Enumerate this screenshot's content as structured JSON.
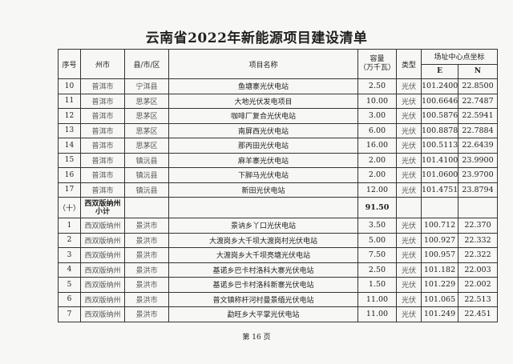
{
  "title": "云南省2022年新能源项目建设清单",
  "headers": {
    "seq": "序号",
    "prefecture": "州市",
    "county": "县/市/区",
    "project": "项目名称",
    "capacity": "容量\n（万千瓦）",
    "type": "类型",
    "coord": "场址中心点坐标",
    "e": "E",
    "n": "N"
  },
  "rows_a": [
    {
      "seq": "10",
      "pref": "普洱市",
      "county": "宁洱县",
      "name": "鱼塘寨光伏电站",
      "cap": "2.50",
      "type": "光伏",
      "e": "101.2400",
      "n": "22.8500"
    },
    {
      "seq": "11",
      "pref": "普洱市",
      "county": "思茅区",
      "name": "大地光伏发电项目",
      "cap": "10.00",
      "type": "光伏",
      "e": "100.6646",
      "n": "22.7487"
    },
    {
      "seq": "12",
      "pref": "普洱市",
      "county": "思茅区",
      "name": "咖啡厂复合光伏电站",
      "cap": "3.00",
      "type": "光伏",
      "e": "100.5876",
      "n": "22.5941"
    },
    {
      "seq": "13",
      "pref": "普洱市",
      "county": "思茅区",
      "name": "南屏西光伏电站",
      "cap": "6.00",
      "type": "光伏",
      "e": "100.8878",
      "n": "22.7884"
    },
    {
      "seq": "14",
      "pref": "普洱市",
      "county": "思茅区",
      "name": "那丙田光伏电站",
      "cap": "16.00",
      "type": "光伏",
      "e": "100.5113",
      "n": "22.6439"
    },
    {
      "seq": "15",
      "pref": "普洱市",
      "county": "镇沅县",
      "name": "麻羊寨光伏电站",
      "cap": "2.00",
      "type": "光伏",
      "e": "101.4100",
      "n": "23.9900"
    },
    {
      "seq": "16",
      "pref": "普洱市",
      "county": "镇沅县",
      "name": "下脚马光伏电站",
      "cap": "2.00",
      "type": "光伏",
      "e": "101.0600",
      "n": "23.9700"
    },
    {
      "seq": "17",
      "pref": "普洱市",
      "county": "镇沅县",
      "name": "新田光伏电站",
      "cap": "12.00",
      "type": "光伏",
      "e": "101.4751",
      "n": "23.8794"
    }
  ],
  "subtotal": {
    "seq": "（十）",
    "pref": "西双版纳州\n小计",
    "cap": "91.50"
  },
  "rows_b": [
    {
      "seq": "1",
      "pref": "西双版纳州",
      "county": "景洪市",
      "name": "景讷乡丫口光伏电站",
      "cap": "3.50",
      "type": "光伏",
      "e": "100.712",
      "n": "22.370"
    },
    {
      "seq": "2",
      "pref": "西双版纳州",
      "county": "景洪市",
      "name": "大渡岗乡大千坝大渡岗村光伏电站",
      "cap": "5.00",
      "type": "光伏",
      "e": "100.927",
      "n": "22.332"
    },
    {
      "seq": "3",
      "pref": "西双版纳州",
      "county": "景洪市",
      "name": "大渡岗乡大千坝亮塘光伏电站",
      "cap": "7.50",
      "type": "光伏",
      "e": "100.957",
      "n": "22.322"
    },
    {
      "seq": "4",
      "pref": "西双版纳州",
      "county": "景洪市",
      "name": "基诺乡巴卡村洛科大寨光伏电站",
      "cap": "2.50",
      "type": "光伏",
      "e": "101.182",
      "n": "22.003"
    },
    {
      "seq": "5",
      "pref": "西双版纳州",
      "county": "景洪市",
      "name": "基诺乡巴卡村洛科新寨光伏电站",
      "cap": "1.50",
      "type": "光伏",
      "e": "101.229",
      "n": "22.002"
    },
    {
      "seq": "6",
      "pref": "西双版纳州",
      "county": "景洪市",
      "name": "普文镇称杆河村曼景缅光伏电站",
      "cap": "11.00",
      "type": "光伏",
      "e": "101.065",
      "n": "22.513"
    },
    {
      "seq": "7",
      "pref": "西双版纳州",
      "county": "景洪市",
      "name": "勐旺乡大平掌光伏电站",
      "cap": "11.00",
      "type": "光伏",
      "e": "101.249",
      "n": "22.451"
    }
  ],
  "footer": "第 16 页"
}
